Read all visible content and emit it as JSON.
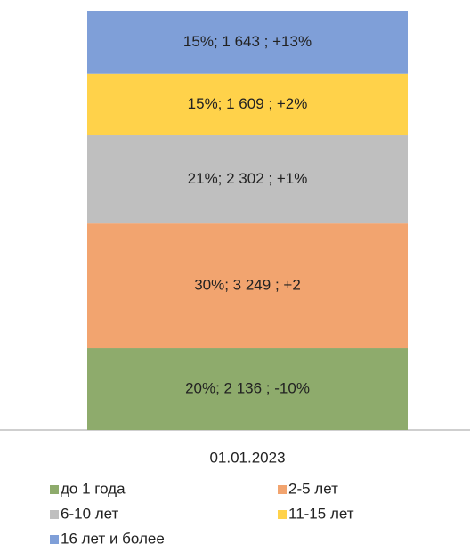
{
  "chart_data": {
    "type": "stacked_bar",
    "categories": [
      "01.01.2023"
    ],
    "series": [
      {
        "name": "до 1 года",
        "color": "#8eab6c",
        "values": [
          2136
        ],
        "value_labels": [
          "20%; 2 136 ; -10%"
        ]
      },
      {
        "name": "2-5 лет",
        "color": "#f2a46f",
        "values": [
          3249
        ],
        "value_labels": [
          "30%; 3 249 ; +2"
        ]
      },
      {
        "name": "6-10 лет",
        "color": "#bfbfbf",
        "values": [
          2302
        ],
        "value_labels": [
          "21%; 2 302 ; +1%"
        ]
      },
      {
        "name": "11-15 лет",
        "color": "#ffd24a",
        "values": [
          1609
        ],
        "value_labels": [
          "15%; 1 609 ; +2%"
        ]
      },
      {
        "name": "16 лет и более",
        "color": "#7f9fd8",
        "values": [
          1643
        ],
        "value_labels": [
          "15%; 1 643 ; +13%"
        ]
      }
    ]
  }
}
